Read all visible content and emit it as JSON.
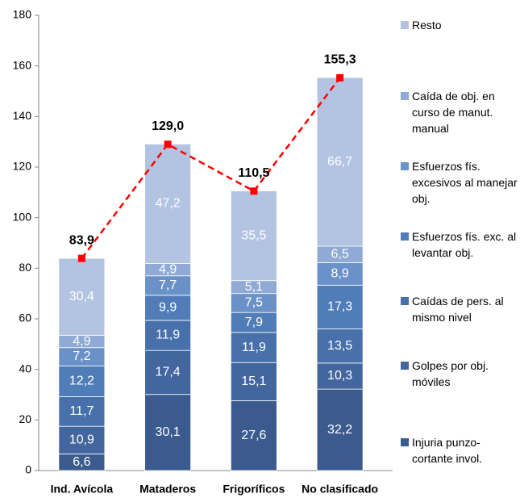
{
  "chart_data": {
    "type": "bar",
    "stacked": true,
    "categories": [
      "Ind. Avícola",
      "Mataderos",
      "Frigoríficos",
      "No clasificado"
    ],
    "series": [
      {
        "name": "Injuria punzo-cortante invol.",
        "color": "#3b5b8f",
        "values": [
          6.6,
          30.1,
          27.6,
          32.2
        ],
        "value_labels": [
          "6,6",
          "30,1",
          "27,6",
          "32,2"
        ]
      },
      {
        "name": "Golpes por obj. móviles",
        "color": "#43669e",
        "values": [
          10.9,
          17.4,
          15.1,
          10.3
        ],
        "value_labels": [
          "10,9",
          "17,4",
          "15,1",
          "10,3"
        ]
      },
      {
        "name": "Caídas de pers. al mismo nivel",
        "color": "#4871ab",
        "values": [
          11.7,
          11.9,
          11.9,
          13.5
        ],
        "value_labels": [
          "11,7",
          "11,9",
          "11,9",
          "13,5"
        ]
      },
      {
        "name": "Esfuerzos fís. exc. al levantar obj.",
        "color": "#507cb8",
        "values": [
          12.2,
          9.9,
          7.9,
          17.3
        ],
        "value_labels": [
          "12,2",
          "9,9",
          "7,9",
          "17,3"
        ]
      },
      {
        "name": "Esfuerzos fís. excesivos al manejar obj.",
        "color": "#6a91c8",
        "values": [
          7.2,
          7.7,
          7.5,
          8.9
        ],
        "value_labels": [
          "7,2",
          "7,7",
          "7,5",
          "8,9"
        ]
      },
      {
        "name": "Caída de obj. en curso de manut. manual",
        "color": "#8eaad5",
        "values": [
          4.9,
          4.9,
          5.1,
          6.5
        ],
        "value_labels": [
          "4,9",
          "4,9",
          "5,1",
          "6,5"
        ]
      },
      {
        "name": "Resto",
        "color": "#b3c4e2",
        "values": [
          30.4,
          47.2,
          35.5,
          66.7
        ],
        "value_labels": [
          "30,4",
          "47,2",
          "35,5",
          "66,7"
        ]
      }
    ],
    "totals": {
      "color": "#ff0000",
      "values": [
        83.9,
        129.0,
        110.5,
        155.3
      ],
      "value_labels": [
        "83,9",
        "129,0",
        "110,5",
        "155,3"
      ]
    },
    "ylim": [
      0,
      180
    ],
    "yticks": [
      0,
      20,
      40,
      60,
      80,
      100,
      120,
      140,
      160,
      180
    ],
    "grid": false
  }
}
